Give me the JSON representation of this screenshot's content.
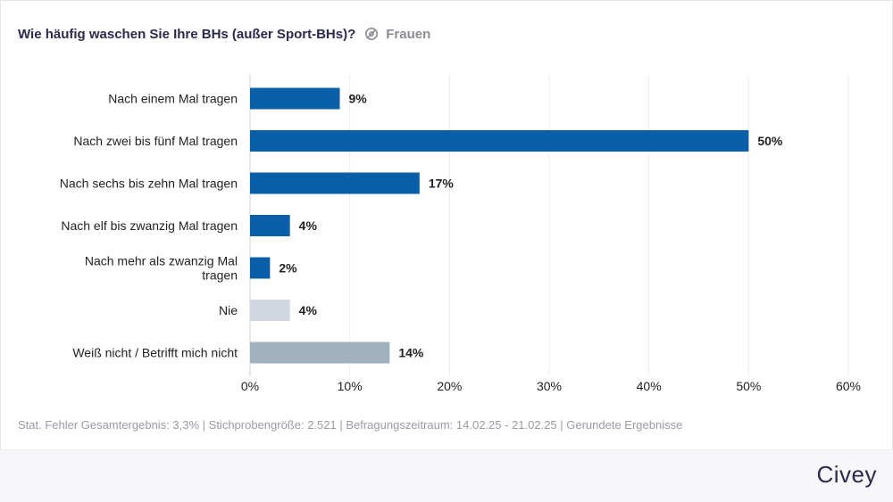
{
  "header": {
    "title": "Wie häufig waschen Sie Ihre BHs (außer Sport-BHs)?",
    "filter_label": "Frauen"
  },
  "footer": {
    "note": "Stat. Fehler Gesamtergebnis: 3,3% | Stichprobengröße: 2.521 | Befragungszeitraum: 14.02.25 - 21.02.25 | Gerundete Ergebnisse",
    "brand": "Civey"
  },
  "chart_data": {
    "type": "bar",
    "orientation": "horizontal",
    "title": "Wie häufig waschen Sie Ihre BHs (außer Sport-BHs)?",
    "xlabel": "",
    "ylabel": "",
    "xlim": [
      0,
      60
    ],
    "ticks": [
      0,
      10,
      20,
      30,
      40,
      50,
      60
    ],
    "tick_suffix": "%",
    "grid": true,
    "categories": [
      {
        "lines": [
          "Nach einem Mal tragen"
        ]
      },
      {
        "lines": [
          "Nach zwei bis fünf Mal tragen"
        ]
      },
      {
        "lines": [
          "Nach sechs bis zehn Mal tragen"
        ]
      },
      {
        "lines": [
          "Nach elf bis zwanzig Mal tragen"
        ]
      },
      {
        "lines": [
          "Nach mehr als zwanzig Mal",
          "tragen"
        ]
      },
      {
        "lines": [
          "Nie"
        ]
      },
      {
        "lines": [
          "Weiß nicht / Betrifft mich nicht"
        ]
      }
    ],
    "values": [
      9,
      50,
      17,
      4,
      2,
      4,
      14
    ],
    "value_labels": [
      "9%",
      "50%",
      "17%",
      "4%",
      "2%",
      "4%",
      "14%"
    ],
    "colors": [
      "#0b5fa8",
      "#0b5fa8",
      "#0b5fa8",
      "#0b5fa8",
      "#0b5fa8",
      "#d0d6de",
      "#9fb0be"
    ]
  }
}
